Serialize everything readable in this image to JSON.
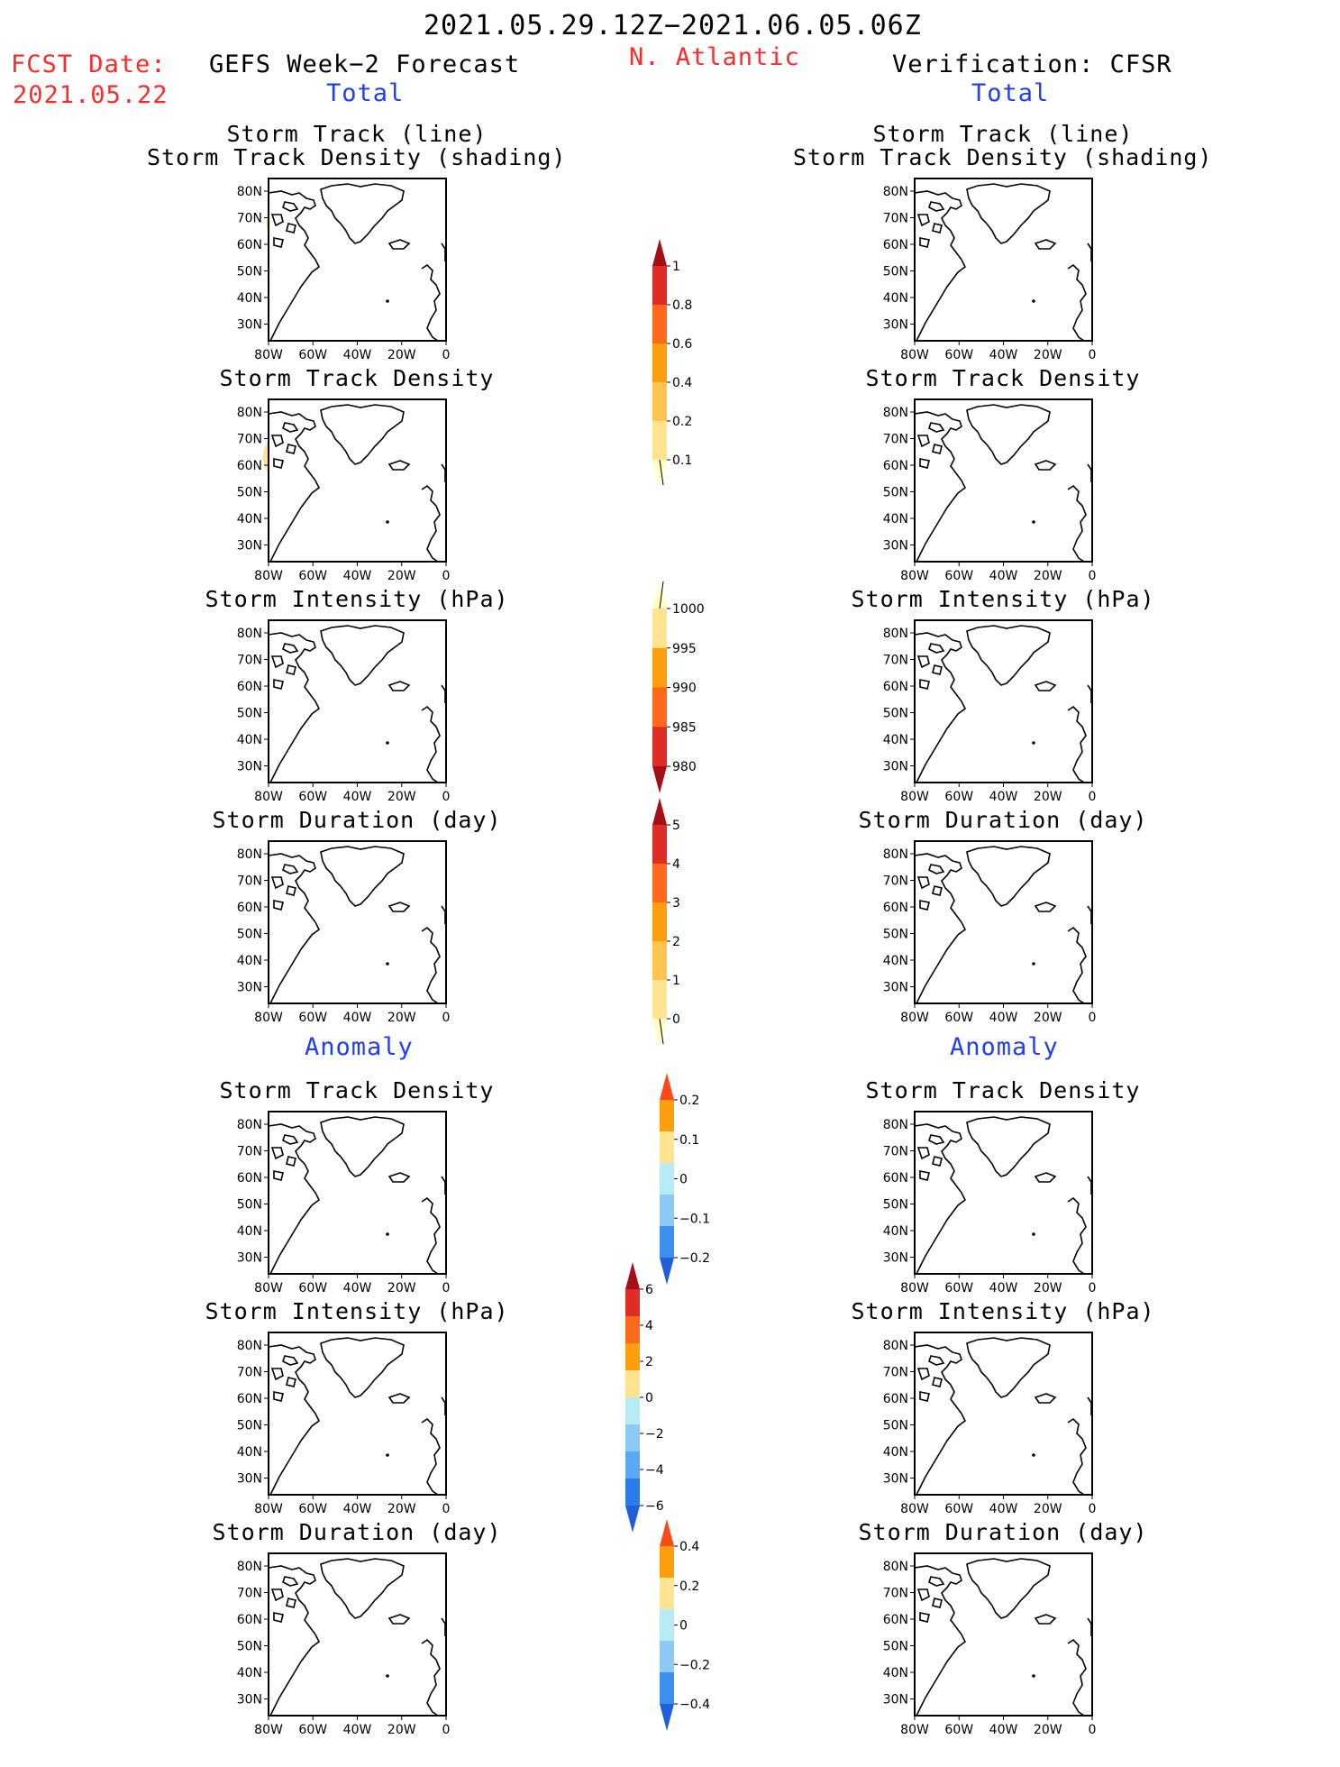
{
  "header": {
    "period": "2021.05.29.12Z−2021.06.05.06Z",
    "fcst_label": "FCST Date:",
    "fcst_date": "2021.05.22",
    "left_title": "GEFS Week−2 Forecast",
    "region": "N. Atlantic",
    "right_title": "Verification: CFSR",
    "total_left": "Total",
    "total_right": "Total",
    "anomaly_left": "Anomaly",
    "anomaly_right": "Anomaly"
  },
  "axis": {
    "lat_labels": [
      "80N",
      "70N",
      "60N",
      "50N",
      "40N",
      "30N"
    ],
    "lon_labels": [
      "80W",
      "60W",
      "40W",
      "20W",
      "0"
    ]
  },
  "panels": [
    {
      "id": "fc-track",
      "title1": "Storm Track (line)",
      "title2": "Storm Track Density (shading)"
    },
    {
      "id": "vf-track",
      "title1": "Storm Track (line)",
      "title2": "Storm Track Density (shading)"
    },
    {
      "id": "fc-density",
      "title1": "Storm Track Density"
    },
    {
      "id": "vf-density",
      "title1": "Storm Track Density"
    },
    {
      "id": "fc-intensity",
      "title1": "Storm Intensity (hPa)"
    },
    {
      "id": "vf-intensity",
      "title1": "Storm Intensity (hPa)"
    },
    {
      "id": "fc-duration",
      "title1": "Storm Duration (day)"
    },
    {
      "id": "vf-duration",
      "title1": "Storm Duration (day)"
    },
    {
      "id": "fc-anom-density",
      "title1": "Storm Track Density"
    },
    {
      "id": "vf-anom-density",
      "title1": "Storm Track Density"
    },
    {
      "id": "fc-anom-intensity",
      "title1": "Storm Intensity (hPa)"
    },
    {
      "id": "vf-anom-intensity",
      "title1": "Storm Intensity (hPa)"
    },
    {
      "id": "fc-anom-duration",
      "title1": "Storm Duration (day)"
    },
    {
      "id": "vf-anom-duration",
      "title1": "Storm Duration (day)"
    }
  ],
  "colorbars": [
    {
      "id": "density",
      "labels": [
        "1",
        "0.8",
        "0.6",
        "0.4",
        "0.2",
        "0.1"
      ],
      "colors": [
        "#a50f15",
        "#de2d26",
        "#fb6a1a",
        "#fd9e0e",
        "#fec44f",
        "#fee391",
        "#ffffbf"
      ]
    },
    {
      "id": "intensity",
      "labels": [
        "1000",
        "995",
        "990",
        "985",
        "980"
      ],
      "colors": [
        "#ffffbf",
        "#fee391",
        "#fd9e0e",
        "#fb6a1a",
        "#de2d26",
        "#a50f15"
      ]
    },
    {
      "id": "duration",
      "labels": [
        "5",
        "4",
        "3",
        "2",
        "1",
        "0"
      ],
      "colors": [
        "#a50f15",
        "#de2d26",
        "#fb6a1a",
        "#fd9e0e",
        "#fec44f",
        "#fee391",
        "#ffffbf"
      ]
    },
    {
      "id": "anom-density",
      "labels": [
        "0.2",
        "0.1",
        "0",
        "−0.1",
        "−0.2"
      ],
      "colors": [
        "#fb4a1a",
        "#fd9e0e",
        "#fee391",
        "#b8ecf5",
        "#8ec9f5",
        "#3d8ef0",
        "#1f5fd8"
      ]
    },
    {
      "id": "anom-intensity",
      "labels": [
        "6",
        "4",
        "2",
        "0",
        "−2",
        "−4",
        "−6"
      ],
      "colors": [
        "#a50f15",
        "#de2d26",
        "#fb6a1a",
        "#fd9e0e",
        "#fee391",
        "#b8ecf5",
        "#8ec9f5",
        "#5aa8f2",
        "#2a7de6",
        "#1f5fd8"
      ]
    },
    {
      "id": "anom-duration",
      "labels": [
        "0.4",
        "0.2",
        "0",
        "−0.2",
        "−0.4"
      ],
      "colors": [
        "#fb4a1a",
        "#fd9e0e",
        "#fee391",
        "#b8ecf5",
        "#8ec9f5",
        "#3d8ef0",
        "#1f5fd8"
      ]
    }
  ],
  "colors": {
    "track_line": "#1e90ff",
    "verif_track_line": "#5fb8f0",
    "title_blue": "#1f3cff",
    "title_red": "#ff2a2a"
  }
}
